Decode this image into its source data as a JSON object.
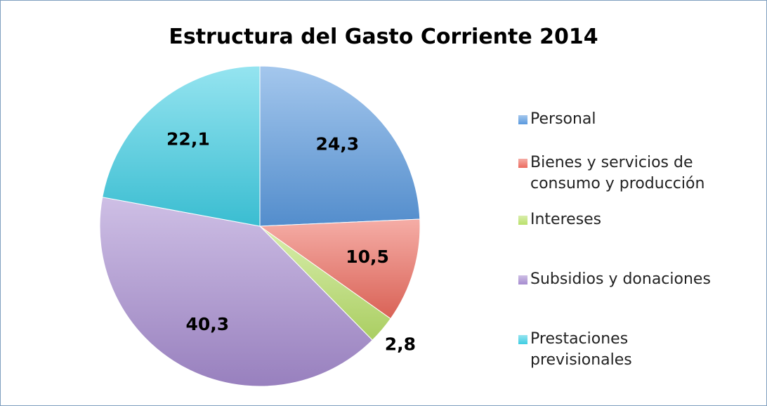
{
  "chart_data": {
    "type": "pie",
    "title": "Estructura del Gasto Corriente 2014",
    "categories": [
      "Personal",
      "Bienes y servicios de consumo y producción",
      "Intereses",
      "Subsidios y donaciones",
      "Prestaciones previsionales"
    ],
    "values": [
      24.3,
      10.5,
      2.8,
      40.3,
      22.1
    ],
    "value_labels": [
      "24,3",
      "10,5",
      "2,8",
      "40,3",
      "22,1"
    ],
    "colors": [
      "#5a99de",
      "#ec6a5e",
      "#b9e06a",
      "#a58bcf",
      "#3fcde3"
    ],
    "legend": "right"
  }
}
